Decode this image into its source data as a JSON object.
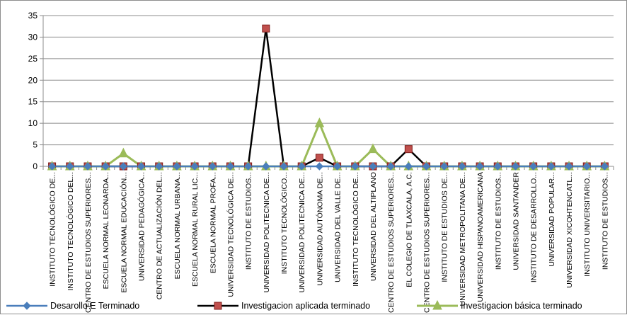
{
  "chart_data": {
    "type": "line",
    "ylim": [
      0,
      35
    ],
    "yticks": [
      0,
      5,
      10,
      15,
      20,
      25,
      30,
      35
    ],
    "grid": true,
    "legend_position": "bottom",
    "categories": [
      "INSTITUTO TECNOLÓGICO DE...",
      "INSTITUTO TECNOLÓGICO DEL...",
      "CENTRO DE ESTUDIOS SUPERIORES...",
      "ESCUELA NORMAL LEONARDA...",
      "ESCUELA NORMAL EDUCACIÓN...",
      "UNIVERSIDAD PEDAGÓGICA...",
      "CENTRO DE ACTUALIZACIÓN DEL...",
      "ESCUELA NORMAL URBANA...",
      "ESCUELA NORMAL RURAL LIC...",
      "ESCUELA NORMAL PROFA...",
      "UNIVERSIDAD TECNOLÓGICA DE...",
      "INSTITUTO DE ESTUDIOS...",
      "UNIVERSIDAD POLITECNICA DE...",
      "INSTITUTO TECNOLÓGICO...",
      "UNIVERSIDAD POLITECNICA DE...",
      "UNIVERSIDAD AUTÓNOMA DE...",
      "UNIVERSIDAD DEL VALLE DE...",
      "INSTITUTO TECNOLÓGICO DE...",
      "UNIVERSIDAD DEL ALTIPLANO",
      "CENTRO DE ESTUDIOS SUPERIORES...",
      "EL COLEGIO DE TLAXCALA, A.C.",
      "CENTRO DE ESTUDIOS SUPERIORES...",
      "INSTITUTO DE ESTUDIOS DE...",
      "UNIVERSIDAD METROPOLITANA DE...",
      "UNIVERSIDAD HISPANOAMERICANA",
      "INSTITUTO DE ESTUDIOS...",
      "UNIVERSIDAD SANTANDER",
      "INSTITUTO DE DESARROLLO...",
      "UNIVERSIDAD POPULAR...",
      "UNIVERSIDAD XICOHTENCATL...",
      "INSTITUTO UNIVERSITARIO...",
      "INSTITUTO DE ESTUDIOS..."
    ],
    "series": [
      {
        "name": "Desarollo E Terminado",
        "color": "#4a7ebb",
        "marker": "diamond",
        "values": [
          0,
          0,
          0,
          0,
          0,
          0,
          0,
          0,
          0,
          0,
          0,
          0,
          0,
          0,
          0,
          0,
          0,
          0,
          0,
          0,
          0,
          0,
          0,
          0,
          0,
          0,
          0,
          0,
          0,
          0,
          0,
          0
        ]
      },
      {
        "name": "Investigacion aplicada terminado",
        "color": "#000000",
        "markerFill": "#c0504d",
        "marker": "square",
        "values": [
          0,
          0,
          0,
          0,
          0,
          0,
          0,
          0,
          0,
          0,
          0,
          0,
          32,
          0,
          0,
          2,
          0,
          0,
          0,
          0,
          4,
          0,
          0,
          0,
          0,
          0,
          0,
          0,
          0,
          0,
          0,
          0
        ]
      },
      {
        "name": "Investigacion básica terminado",
        "color": "#9bbb59",
        "marker": "triangle",
        "values": [
          0,
          0,
          0,
          0,
          3,
          0,
          0,
          0,
          0,
          0,
          0,
          0,
          0,
          0,
          0,
          10,
          0,
          0,
          4,
          0,
          0,
          0,
          0,
          0,
          0,
          0,
          0,
          0,
          0,
          0,
          0,
          0
        ]
      }
    ]
  }
}
